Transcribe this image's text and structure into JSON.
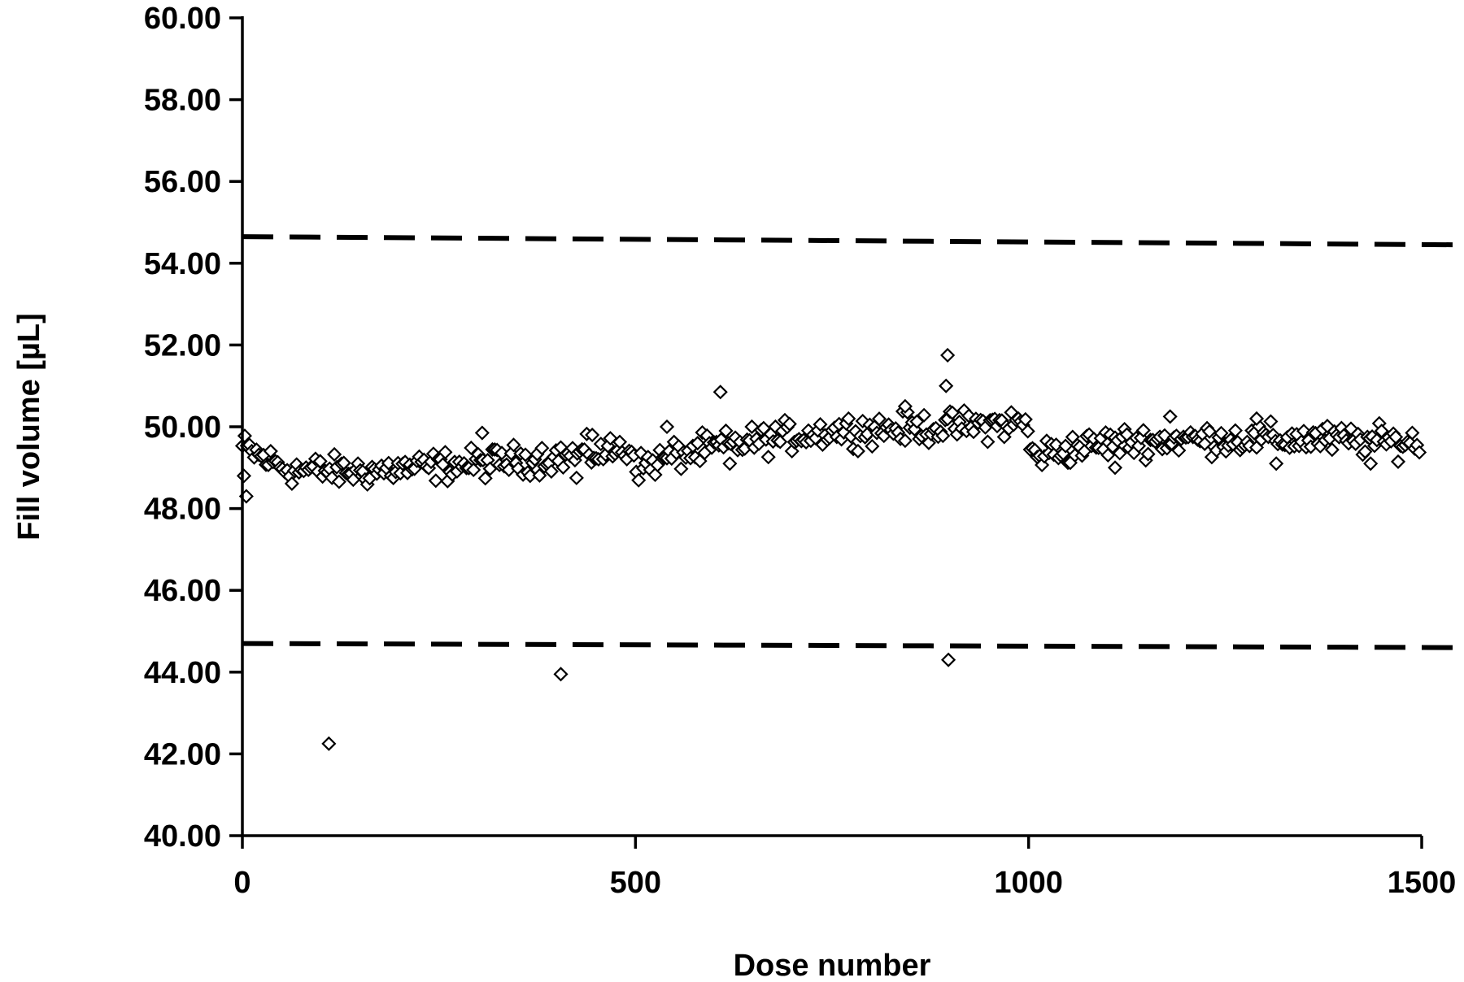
{
  "chart_data": {
    "type": "scatter",
    "title": "",
    "xlabel": "Dose number",
    "ylabel": "Fill volume [µL]",
    "xlim": [
      0,
      1500
    ],
    "ylim": [
      40,
      60
    ],
    "x_ticks": [
      0,
      500,
      1000,
      1500
    ],
    "x_tick_labels": [
      "0",
      "500",
      "1000",
      "1500"
    ],
    "y_ticks": [
      40,
      42,
      44,
      46,
      48,
      50,
      52,
      54,
      56,
      58,
      60
    ],
    "y_tick_labels": [
      "40.00",
      "42.00",
      "44.00",
      "46.00",
      "48.00",
      "50.00",
      "52.00",
      "54.00",
      "56.00",
      "58.00",
      "60.00"
    ],
    "grid": false,
    "legend": "none",
    "marker": "open-diamond",
    "limits": [
      {
        "label": "upper-limit",
        "y_start": 54.65,
        "y_end": 54.45
      },
      {
        "label": "lower-limit",
        "y_start": 44.7,
        "y_end": 44.6
      }
    ],
    "trend": [
      {
        "x": 0,
        "y": 49.5
      },
      {
        "x": 30,
        "y": 49.2
      },
      {
        "x": 60,
        "y": 48.95
      },
      {
        "x": 150,
        "y": 48.9
      },
      {
        "x": 300,
        "y": 49.1
      },
      {
        "x": 420,
        "y": 49.3
      },
      {
        "x": 495,
        "y": 49.45
      },
      {
        "x": 505,
        "y": 49.0
      },
      {
        "x": 550,
        "y": 49.3
      },
      {
        "x": 650,
        "y": 49.65
      },
      {
        "x": 750,
        "y": 49.9
      },
      {
        "x": 900,
        "y": 50.0
      },
      {
        "x": 998,
        "y": 50.1
      },
      {
        "x": 1003,
        "y": 49.3
      },
      {
        "x": 1100,
        "y": 49.6
      },
      {
        "x": 1200,
        "y": 49.7
      },
      {
        "x": 1350,
        "y": 49.7
      },
      {
        "x": 1500,
        "y": 49.6
      }
    ],
    "outliers": [
      {
        "x": 2,
        "y": 48.8
      },
      {
        "x": 5,
        "y": 48.3
      },
      {
        "x": 110,
        "y": 42.25
      },
      {
        "x": 305,
        "y": 49.85
      },
      {
        "x": 405,
        "y": 43.95
      },
      {
        "x": 425,
        "y": 48.75
      },
      {
        "x": 445,
        "y": 49.8
      },
      {
        "x": 540,
        "y": 50.0
      },
      {
        "x": 608,
        "y": 50.85
      },
      {
        "x": 620,
        "y": 49.1
      },
      {
        "x": 843,
        "y": 50.5
      },
      {
        "x": 895,
        "y": 51.0
      },
      {
        "x": 897,
        "y": 51.75
      },
      {
        "x": 898,
        "y": 44.3
      },
      {
        "x": 1110,
        "y": 49.0
      },
      {
        "x": 1315,
        "y": 49.1
      },
      {
        "x": 1435,
        "y": 49.1
      },
      {
        "x": 1180,
        "y": 50.25
      },
      {
        "x": 1290,
        "y": 50.2
      }
    ],
    "series_count": 1500,
    "noise": 0.28
  }
}
